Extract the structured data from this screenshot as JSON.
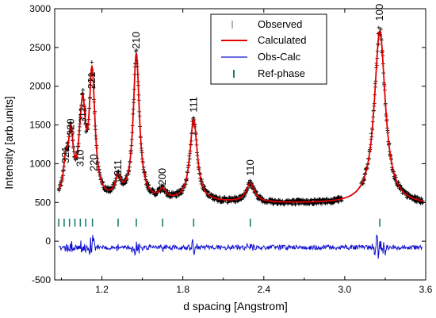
{
  "chart_data": {
    "type": "line",
    "title": "",
    "xlabel": "d spacing [Angstrom]",
    "ylabel": "Intensity [arb.units]",
    "xlim": [
      0.85,
      3.6
    ],
    "ylim": [
      -500,
      3000
    ],
    "xticks": [
      1.2,
      1.8,
      2.4,
      3.0,
      3.6
    ],
    "xtick_labels": [
      "1.2",
      "1.8",
      "2.4",
      "3.0",
      "3.6"
    ],
    "yticks": [
      -500,
      0,
      500,
      1000,
      1500,
      2000,
      2500,
      3000
    ],
    "ytick_labels": [
      "-500",
      "0",
      "500",
      "1000",
      "1500",
      "2000",
      "2500",
      "3000"
    ],
    "legend_position": "top-right",
    "series": [
      {
        "name": "Observed",
        "color": "#000000",
        "style": "plus-markers"
      },
      {
        "name": "Calculated",
        "color": "#e00000",
        "style": "line"
      },
      {
        "name": "Obs-Calc",
        "color": "#1010d0",
        "style": "line"
      },
      {
        "name": "Ref-phase",
        "color": "#1a7f6f",
        "style": "tick-marks"
      }
    ],
    "background_level": 520,
    "peaks": [
      {
        "label": "321",
        "d": 0.932,
        "intensity": 920
      },
      {
        "label": "320",
        "d": 0.97,
        "intensity": 1280
      },
      {
        "label": "310",
        "d": 1.04,
        "intensity": 880
      },
      {
        "label": "311",
        "d": 1.06,
        "intensity": 1440
      },
      {
        "label": "221",
        "d": 1.125,
        "intensity": 1880
      },
      {
        "label": "220",
        "d": 1.14,
        "intensity": 820
      },
      {
        "label": "211",
        "d": 1.32,
        "intensity": 760
      },
      {
        "label": "210",
        "d": 1.455,
        "intensity": 2400
      },
      {
        "label": "200",
        "d": 1.65,
        "intensity": 640
      },
      {
        "label": "111",
        "d": 1.88,
        "intensity": 1580
      },
      {
        "label": "110",
        "d": 2.3,
        "intensity": 760
      },
      {
        "label": "100",
        "d": 3.26,
        "intensity": 2760
      }
    ],
    "ref_phase_ticks_d": [
      0.88,
      0.92,
      0.96,
      1.0,
      1.04,
      1.08,
      1.13,
      1.32,
      1.455,
      1.65,
      1.88,
      2.3,
      3.26
    ],
    "ref_phase_tick_level": 240,
    "difference_baseline": -80
  }
}
